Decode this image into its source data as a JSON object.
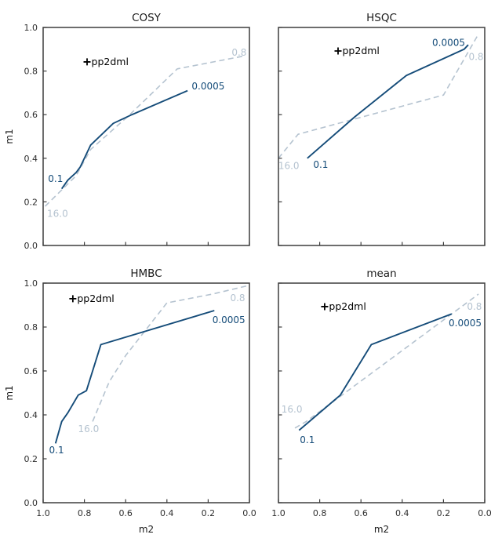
{
  "figure": {
    "background": "#ffffff",
    "axis_color": "#3d3d3d",
    "tick_label_color": "#2e2e2e",
    "solid_color": "#154c79",
    "dashed_color": "#b5c3d0",
    "marker_color": "#000000",
    "xlabel": "m2",
    "ylabel": "m1",
    "x_ticks": {
      "values": [
        1.0,
        0.8,
        0.6,
        0.4,
        0.2,
        0.0
      ],
      "labels": [
        "1.0",
        "0.8",
        "0.6",
        "0.4",
        "0.2",
        "0.0"
      ]
    },
    "y_ticks": {
      "values": [
        0.0,
        0.2,
        0.4,
        0.6,
        0.8,
        1.0
      ],
      "labels": [
        "0.0",
        "0.2",
        "0.4",
        "0.6",
        "0.8",
        "1.0"
      ]
    }
  },
  "chart_data": [
    {
      "type": "line",
      "title": "COSY",
      "xlabel": "m2",
      "ylabel": "m1",
      "xlim": [
        1.0,
        0.0
      ],
      "ylim": [
        0.0,
        1.0
      ],
      "grid": false,
      "legend": "none",
      "series": [
        {
          "id": "dashed-line",
          "style": "dashed",
          "points": [
            [
              0.99,
              0.18
            ],
            [
              0.84,
              0.32
            ],
            [
              0.77,
              0.44
            ],
            [
              0.58,
              0.6
            ],
            [
              0.35,
              0.81
            ],
            [
              0.02,
              0.87
            ]
          ],
          "labels": [
            {
              "text": "16.0",
              "x": 0.93,
              "y": 0.145
            },
            {
              "text": "0.8",
              "x": 0.05,
              "y": 0.885
            }
          ]
        },
        {
          "id": "solid-line",
          "style": "solid",
          "points": [
            [
              0.91,
              0.26
            ],
            [
              0.88,
              0.3
            ],
            [
              0.84,
              0.335
            ],
            [
              0.82,
              0.36
            ],
            [
              0.77,
              0.46
            ],
            [
              0.66,
              0.56
            ],
            [
              0.57,
              0.6
            ],
            [
              0.3,
              0.71
            ]
          ],
          "labels": [
            {
              "text": "0.1",
              "x": 0.94,
              "y": 0.305
            },
            {
              "text": "0.0005",
              "x": 0.2,
              "y": 0.73
            }
          ]
        }
      ],
      "marker": {
        "symbol": "+",
        "label": "pp2dml",
        "x": 0.787,
        "y": 0.842
      }
    },
    {
      "type": "line",
      "title": "HSQC",
      "xlabel": "m2",
      "ylabel": "m1",
      "xlim": [
        1.0,
        0.0
      ],
      "ylim": [
        0.0,
        1.0
      ],
      "grid": false,
      "legend": "none",
      "series": [
        {
          "id": "dashed-line",
          "style": "dashed",
          "points": [
            [
              1.0,
              0.4
            ],
            [
              0.905,
              0.51
            ],
            [
              0.2,
              0.69
            ],
            [
              0.03,
              0.97
            ]
          ],
          "labels": [
            {
              "text": "16.0",
              "x": 0.95,
              "y": 0.365
            },
            {
              "text": "0.8",
              "x": 0.042,
              "y": 0.865
            }
          ]
        },
        {
          "id": "solid-line",
          "style": "solid",
          "points": [
            [
              0.86,
              0.4
            ],
            [
              0.63,
              0.59
            ],
            [
              0.38,
              0.78
            ],
            [
              0.1,
              0.9
            ],
            [
              0.08,
              0.92
            ]
          ],
          "labels": [
            {
              "text": "0.1",
              "x": 0.795,
              "y": 0.37
            },
            {
              "text": "0.0005",
              "x": 0.175,
              "y": 0.93
            }
          ]
        }
      ],
      "marker": {
        "symbol": "+",
        "label": "pp2dml",
        "x": 0.711,
        "y": 0.892
      }
    },
    {
      "type": "line",
      "title": "HMBC",
      "xlabel": "m2",
      "ylabel": "m1",
      "xlim": [
        1.0,
        0.0
      ],
      "ylim": [
        0.0,
        1.0
      ],
      "grid": false,
      "legend": "none",
      "series": [
        {
          "id": "dashed-line",
          "style": "dashed",
          "points": [
            [
              0.76,
              0.37
            ],
            [
              0.68,
              0.55
            ],
            [
              0.6,
              0.67
            ],
            [
              0.5,
              0.79
            ],
            [
              0.4,
              0.91
            ],
            [
              0.18,
              0.95
            ],
            [
              0.0,
              0.99
            ]
          ],
          "labels": [
            {
              "text": "16.0",
              "x": 0.78,
              "y": 0.335
            },
            {
              "text": "0.8",
              "x": 0.057,
              "y": 0.932
            }
          ]
        },
        {
          "id": "solid-line",
          "style": "solid",
          "points": [
            [
              0.94,
              0.27
            ],
            [
              0.91,
              0.37
            ],
            [
              0.88,
              0.41
            ],
            [
              0.83,
              0.49
            ],
            [
              0.79,
              0.51
            ],
            [
              0.72,
              0.72
            ],
            [
              0.17,
              0.875
            ]
          ],
          "labels": [
            {
              "text": "0.1",
              "x": 0.935,
              "y": 0.24
            },
            {
              "text": "0.0005",
              "x": 0.1,
              "y": 0.832
            }
          ]
        }
      ],
      "marker": {
        "symbol": "+",
        "label": "pp2dml",
        "x": 0.856,
        "y": 0.929
      }
    },
    {
      "type": "line",
      "title": "mean",
      "xlabel": "m2",
      "ylabel": "m1",
      "xlim": [
        1.0,
        0.0
      ],
      "ylim": [
        0.0,
        1.0
      ],
      "grid": false,
      "legend": "none",
      "series": [
        {
          "id": "dashed-line",
          "style": "dashed",
          "points": [
            [
              0.92,
              0.34
            ],
            [
              0.865,
              0.37
            ],
            [
              0.03,
              0.95
            ]
          ],
          "labels": [
            {
              "text": "16.0",
              "x": 0.935,
              "y": 0.425
            },
            {
              "text": "0.8",
              "x": 0.05,
              "y": 0.893
            }
          ]
        },
        {
          "id": "solid-line",
          "style": "solid",
          "points": [
            [
              0.9,
              0.33
            ],
            [
              0.7,
              0.49
            ],
            [
              0.55,
              0.72
            ],
            [
              0.16,
              0.86
            ]
          ],
          "labels": [
            {
              "text": "0.1",
              "x": 0.86,
              "y": 0.285
            },
            {
              "text": "0.0005",
              "x": 0.095,
              "y": 0.818
            }
          ]
        }
      ],
      "marker": {
        "symbol": "+",
        "label": "pp2dml",
        "x": 0.776,
        "y": 0.893
      }
    }
  ]
}
